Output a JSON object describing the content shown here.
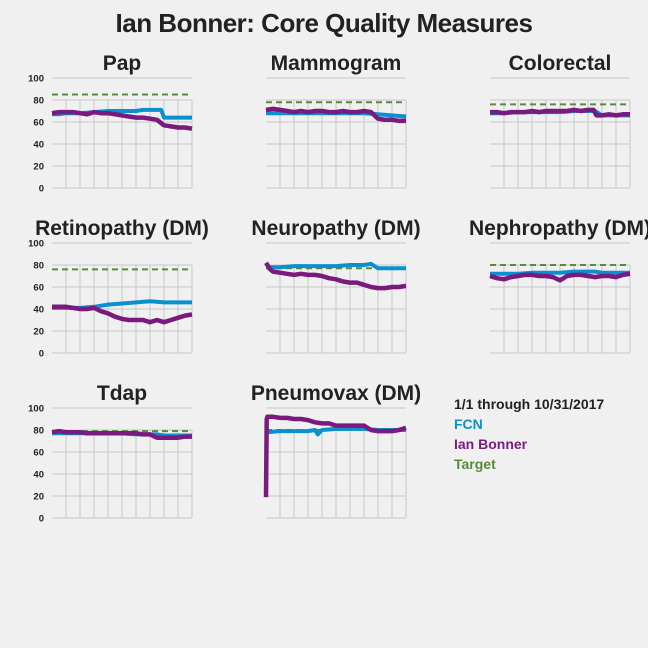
{
  "title": "Ian Bonner: Core Quality Measures",
  "legend": {
    "period": "1/1 through 10/31/2017",
    "items": [
      {
        "label": "FCN",
        "color": "#0a8fcf"
      },
      {
        "label": "Ian Bonner",
        "color": "#7b1a7e"
      },
      {
        "label": "Target",
        "color": "#5a8a3a"
      }
    ]
  },
  "colors": {
    "fcn": "#0a8fcf",
    "provider": "#7b1a7e",
    "target": "#5a8a3a",
    "grid": "#c8c8c8",
    "text": "#222222"
  },
  "chart_data": [
    {
      "type": "line",
      "title": "Pap",
      "ylim": [
        0,
        100
      ],
      "yticks": [
        "0",
        "20",
        "40",
        "60",
        "80",
        "100"
      ],
      "target": 85,
      "series": [
        {
          "name": "FCN",
          "x": [
            0,
            0.05,
            0.1,
            0.2,
            0.3,
            0.4,
            0.5,
            0.6,
            0.65,
            0.7,
            0.78,
            0.8,
            0.85,
            0.9,
            1.0
          ],
          "values": [
            67,
            67,
            68,
            68,
            69,
            70,
            70,
            70,
            71,
            71,
            71,
            64,
            64,
            64,
            64
          ]
        },
        {
          "name": "Ian Bonner",
          "x": [
            0,
            0.05,
            0.1,
            0.15,
            0.2,
            0.25,
            0.3,
            0.35,
            0.4,
            0.45,
            0.5,
            0.55,
            0.6,
            0.65,
            0.7,
            0.75,
            0.8,
            0.85,
            0.9,
            0.95,
            1.0
          ],
          "values": [
            68,
            69,
            69,
            69,
            68,
            67,
            69,
            68,
            68,
            67,
            66,
            65,
            64,
            64,
            63,
            62,
            57,
            56,
            55,
            55,
            54
          ]
        }
      ]
    },
    {
      "type": "line",
      "title": "Mammogram",
      "ylim": [
        0,
        100
      ],
      "yticks": [],
      "target": 78,
      "series": [
        {
          "name": "FCN",
          "x": [
            0,
            0.1,
            0.2,
            0.3,
            0.4,
            0.5,
            0.6,
            0.7,
            0.8,
            0.9,
            1.0
          ],
          "values": [
            68,
            68,
            68,
            68,
            68,
            68,
            68,
            68,
            67,
            66,
            65
          ]
        },
        {
          "name": "Ian Bonner",
          "x": [
            0,
            0.05,
            0.1,
            0.15,
            0.2,
            0.25,
            0.3,
            0.35,
            0.4,
            0.45,
            0.5,
            0.55,
            0.6,
            0.65,
            0.7,
            0.75,
            0.8,
            0.85,
            0.9,
            0.95,
            1.0
          ],
          "values": [
            71,
            72,
            71,
            70,
            69,
            70,
            69,
            70,
            70,
            69,
            69,
            70,
            69,
            69,
            70,
            69,
            63,
            62,
            62,
            61,
            61
          ]
        }
      ]
    },
    {
      "type": "line",
      "title": "Colorectal",
      "ylim": [
        0,
        100
      ],
      "yticks": [],
      "target": 76,
      "series": [
        {
          "name": "FCN",
          "x": [
            0,
            0.1,
            0.2,
            0.3,
            0.4,
            0.5,
            0.6,
            0.7,
            0.75,
            0.8,
            0.9,
            1.0
          ],
          "values": [
            68,
            68,
            69,
            69,
            69,
            69,
            70,
            70,
            70,
            66,
            66,
            66
          ]
        },
        {
          "name": "Ian Bonner",
          "x": [
            0,
            0.05,
            0.1,
            0.15,
            0.2,
            0.25,
            0.3,
            0.35,
            0.4,
            0.45,
            0.5,
            0.55,
            0.6,
            0.65,
            0.7,
            0.74,
            0.76,
            0.8,
            0.85,
            0.9,
            0.95,
            1.0
          ],
          "values": [
            69,
            69,
            68,
            69,
            69,
            69,
            70,
            69,
            70,
            70,
            70,
            70,
            71,
            70,
            71,
            71,
            66,
            66,
            67,
            66,
            67,
            67
          ]
        }
      ]
    },
    {
      "type": "line",
      "title": "Retinopathy (DM)",
      "ylim": [
        0,
        100
      ],
      "yticks": [
        "0",
        "20",
        "40",
        "60",
        "80",
        "100"
      ],
      "target": 76,
      "series": [
        {
          "name": "FCN",
          "x": [
            0,
            0.1,
            0.2,
            0.3,
            0.4,
            0.5,
            0.6,
            0.7,
            0.8,
            0.9,
            1.0
          ],
          "values": [
            41,
            41,
            41,
            42,
            44,
            45,
            46,
            47,
            46,
            46,
            46
          ]
        },
        {
          "name": "Ian Bonner",
          "x": [
            0,
            0.05,
            0.1,
            0.15,
            0.2,
            0.25,
            0.3,
            0.35,
            0.4,
            0.45,
            0.5,
            0.55,
            0.6,
            0.65,
            0.7,
            0.75,
            0.8,
            0.85,
            0.9,
            0.95,
            1.0
          ],
          "values": [
            42,
            42,
            42,
            41,
            40,
            40,
            41,
            38,
            36,
            33,
            31,
            30,
            30,
            30,
            28,
            30,
            28,
            30,
            32,
            34,
            35
          ]
        }
      ]
    },
    {
      "type": "line",
      "title": "Neuropathy (DM)",
      "ylim": [
        0,
        100
      ],
      "yticks": [],
      "target": 77,
      "series": [
        {
          "name": "FCN",
          "x": [
            0,
            0.1,
            0.2,
            0.3,
            0.4,
            0.5,
            0.6,
            0.7,
            0.75,
            0.8,
            0.9,
            1.0
          ],
          "values": [
            78,
            78,
            79,
            79,
            79,
            79,
            80,
            80,
            81,
            77,
            77,
            77
          ]
        },
        {
          "name": "Ian Bonner",
          "x": [
            0,
            0.03,
            0.05,
            0.1,
            0.15,
            0.2,
            0.25,
            0.3,
            0.35,
            0.4,
            0.45,
            0.5,
            0.55,
            0.6,
            0.65,
            0.7,
            0.75,
            0.8,
            0.85,
            0.9,
            0.95,
            1.0
          ],
          "values": [
            82,
            76,
            74,
            73,
            72,
            71,
            72,
            71,
            71,
            70,
            68,
            67,
            65,
            64,
            64,
            62,
            60,
            59,
            59,
            60,
            60,
            61
          ]
        }
      ]
    },
    {
      "type": "line",
      "title": "Nephropathy (DM)",
      "ylim": [
        0,
        100
      ],
      "yticks": [],
      "target": 80,
      "series": [
        {
          "name": "FCN",
          "x": [
            0,
            0.1,
            0.2,
            0.3,
            0.4,
            0.5,
            0.6,
            0.7,
            0.75,
            0.8,
            0.9,
            1.0
          ],
          "values": [
            72,
            72,
            72,
            73,
            73,
            73,
            74,
            74,
            74,
            73,
            73,
            73
          ]
        },
        {
          "name": "Ian Bonner",
          "x": [
            0,
            0.05,
            0.1,
            0.15,
            0.2,
            0.25,
            0.3,
            0.35,
            0.4,
            0.45,
            0.5,
            0.55,
            0.6,
            0.65,
            0.7,
            0.75,
            0.8,
            0.85,
            0.9,
            0.95,
            1.0
          ],
          "values": [
            70,
            68,
            67,
            69,
            70,
            71,
            71,
            70,
            70,
            69,
            66,
            70,
            71,
            71,
            70,
            69,
            70,
            70,
            69,
            71,
            72
          ]
        }
      ]
    },
    {
      "type": "line",
      "title": "Tdap",
      "ylim": [
        0,
        100
      ],
      "yticks": [
        "0",
        "20",
        "40",
        "60",
        "80",
        "100"
      ],
      "target": 79,
      "series": [
        {
          "name": "FCN",
          "x": [
            0,
            0.1,
            0.2,
            0.3,
            0.4,
            0.5,
            0.6,
            0.7,
            0.75,
            0.8,
            0.9,
            1.0
          ],
          "values": [
            77,
            77,
            77,
            77,
            77,
            77,
            76,
            76,
            76,
            75,
            75,
            75
          ]
        },
        {
          "name": "Ian Bonner",
          "x": [
            0,
            0.05,
            0.1,
            0.15,
            0.2,
            0.25,
            0.3,
            0.35,
            0.4,
            0.45,
            0.5,
            0.55,
            0.6,
            0.65,
            0.7,
            0.75,
            0.8,
            0.85,
            0.9,
            0.95,
            1.0
          ],
          "values": [
            78,
            79,
            78,
            78,
            78,
            77,
            77,
            77,
            77,
            77,
            77,
            77,
            77,
            76,
            76,
            73,
            73,
            73,
            73,
            74,
            74
          ]
        }
      ]
    },
    {
      "type": "line",
      "title": "Pneumovax (DM)",
      "ylim": [
        0,
        100
      ],
      "yticks": [],
      "target": 80,
      "series": [
        {
          "name": "FCN",
          "x": [
            0,
            0.1,
            0.2,
            0.3,
            0.35,
            0.37,
            0.4,
            0.5,
            0.6,
            0.7,
            0.8,
            0.9,
            1.0
          ],
          "values": [
            78,
            79,
            79,
            79,
            80,
            76,
            80,
            81,
            81,
            81,
            80,
            80,
            80
          ]
        },
        {
          "name": "Ian Bonner",
          "x": [
            0,
            0.005,
            0.01,
            0.05,
            0.1,
            0.15,
            0.2,
            0.25,
            0.3,
            0.35,
            0.4,
            0.45,
            0.5,
            0.55,
            0.6,
            0.65,
            0.7,
            0.75,
            0.8,
            0.85,
            0.9,
            0.95,
            1.0
          ],
          "values": [
            19,
            90,
            92,
            92,
            91,
            91,
            90,
            90,
            89,
            87,
            86,
            86,
            84,
            84,
            84,
            84,
            84,
            80,
            79,
            79,
            79,
            80,
            82
          ]
        }
      ]
    }
  ]
}
